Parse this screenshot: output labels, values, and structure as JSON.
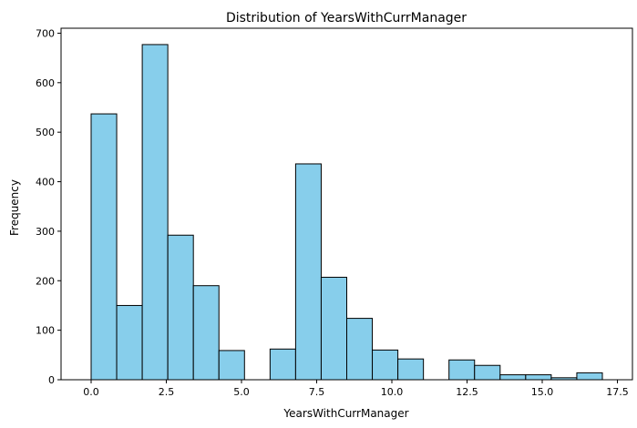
{
  "chart_data": {
    "type": "bar",
    "title": "Distribution of YearsWithCurrManager",
    "xlabel": "YearsWithCurrManager",
    "ylabel": "Frequency",
    "xlim": [
      -1.0,
      18.0
    ],
    "ylim": [
      0,
      710
    ],
    "bin_edges": [
      0,
      0.85,
      1.7,
      2.55,
      3.4,
      4.25,
      5.1,
      5.95,
      6.8,
      7.65,
      8.5,
      9.35,
      10.2,
      11.05,
      11.9,
      12.75,
      13.6,
      14.45,
      15.3,
      16.15,
      17.0
    ],
    "values": [
      537,
      150,
      677,
      292,
      190,
      59,
      0,
      62,
      436,
      207,
      124,
      60,
      42,
      0,
      40,
      29,
      10,
      10,
      4,
      14
    ],
    "xticks": [
      0.0,
      2.5,
      5.0,
      7.5,
      10.0,
      12.5,
      15.0,
      17.5
    ],
    "xtick_labels": [
      "0.0",
      "2.5",
      "5.0",
      "7.5",
      "10.0",
      "12.5",
      "15.0",
      "17.5"
    ],
    "yticks": [
      0,
      100,
      200,
      300,
      400,
      500,
      600,
      700
    ],
    "ytick_labels": [
      "0",
      "100",
      "200",
      "300",
      "400",
      "500",
      "600",
      "700"
    ],
    "bar_color": "#87ceeb",
    "edge_color": "#000000",
    "grid": false
  }
}
